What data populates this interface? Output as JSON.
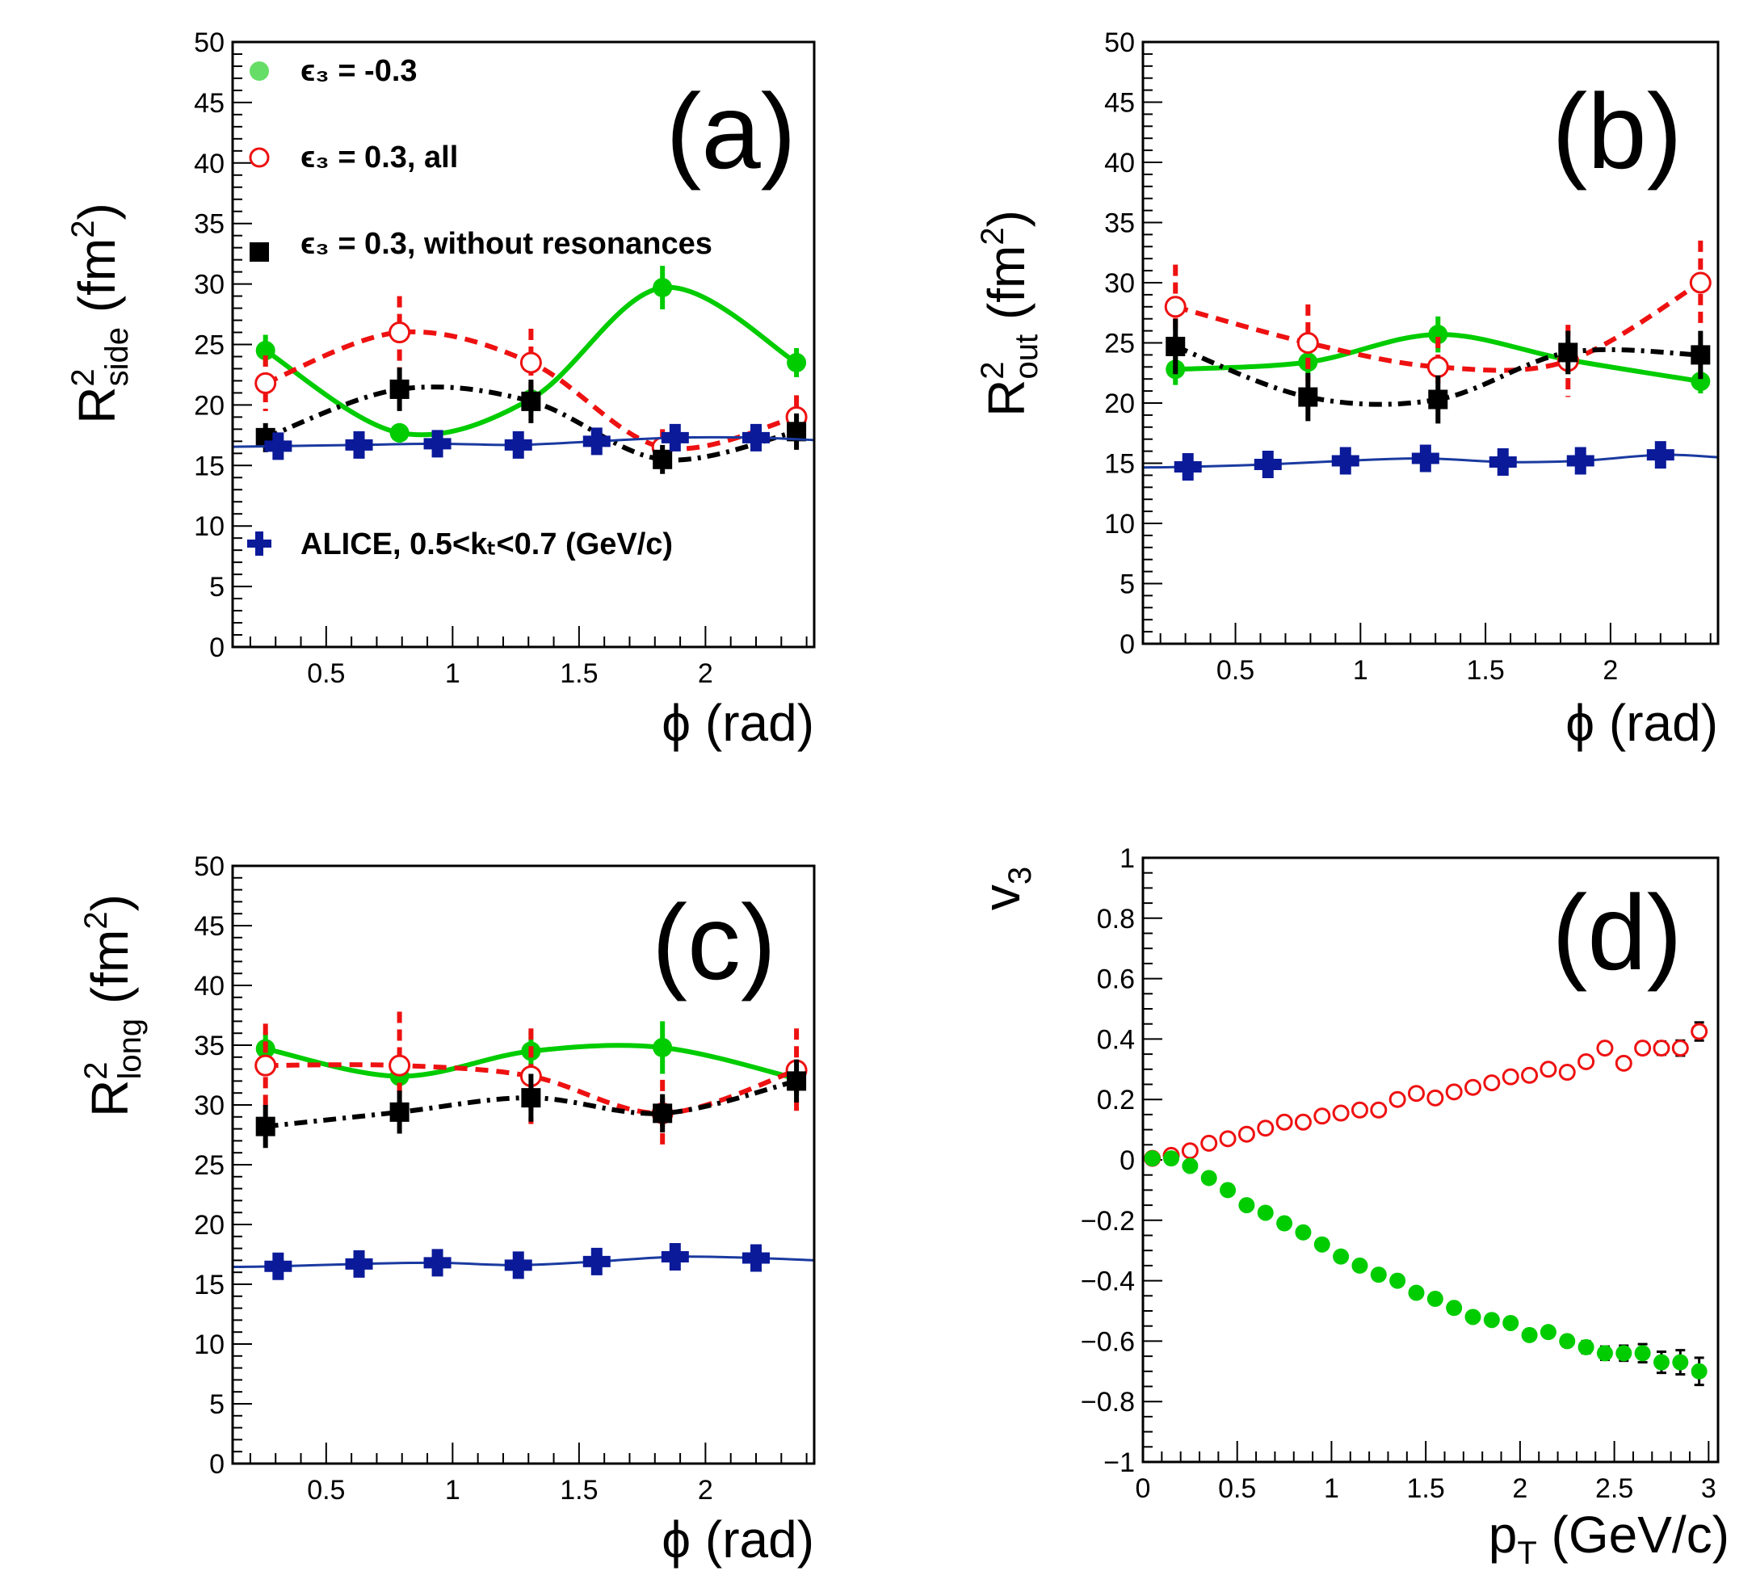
{
  "colors": {
    "green": "#00cc00",
    "green_legend": "#66dd66",
    "red": "#ee1111",
    "black": "#000000",
    "blue": "#0a1a99",
    "blue_line": "#1a3aa0"
  },
  "legend": {
    "green": "ϵ₃ = -0.3",
    "red": "ϵ₃ = 0.3, all",
    "black": "ϵ₃ = 0.3, without resonances",
    "blue": "ALICE, 0.5<kₜ<0.7 (GeV/c)"
  },
  "chart_data": [
    {
      "panel": "(a)",
      "type": "line",
      "ylabel": "R²side (fm²)",
      "xlabel": "ϕ (rad)",
      "xlim": [
        0.13,
        2.43
      ],
      "ylim": [
        0,
        50
      ],
      "xticks": [
        "0.5",
        "1",
        "1.5",
        "2"
      ],
      "yticks": [
        "0",
        "5",
        "10",
        "15",
        "20",
        "25",
        "30",
        "35",
        "40",
        "45",
        "50"
      ],
      "series": [
        {
          "name": "ϵ₃ = -0.3",
          "x": [
            0.26,
            0.79,
            1.31,
            1.83,
            2.36
          ],
          "y": [
            24.5,
            17.7,
            20.5,
            29.7,
            23.5
          ],
          "err": [
            1.3,
            0.8,
            1.2,
            1.8,
            1.2
          ]
        },
        {
          "name": "ϵ₃ = 0.3, all",
          "x": [
            0.26,
            0.79,
            1.31,
            1.83,
            2.36
          ],
          "y": [
            21.8,
            26.0,
            23.5,
            16.5,
            19.0
          ],
          "err": [
            2.3,
            3.0,
            2.8,
            1.5,
            1.8
          ]
        },
        {
          "name": "ϵ₃ = 0.3, without resonances",
          "x": [
            0.26,
            0.79,
            1.31,
            1.83,
            2.36
          ],
          "y": [
            17.3,
            21.3,
            20.3,
            15.5,
            17.8
          ],
          "err": [
            1.2,
            1.8,
            1.8,
            1.2,
            1.5
          ]
        },
        {
          "name": "ALICE, 0.5<kₜ<0.7 (GeV/c)",
          "x": [
            0.31,
            0.63,
            0.94,
            1.26,
            1.57,
            1.88,
            2.2
          ],
          "y": [
            16.6,
            16.7,
            16.8,
            16.7,
            17.0,
            17.3,
            17.3
          ],
          "err": [
            0.6,
            0.6,
            0.6,
            0.6,
            0.6,
            0.7,
            0.7
          ]
        }
      ]
    },
    {
      "panel": "(b)",
      "type": "line",
      "ylabel": "R²out (fm²)",
      "xlabel": "ϕ (rad)",
      "xlim": [
        0.13,
        2.43
      ],
      "ylim": [
        0,
        50
      ],
      "xticks": [
        "0.5",
        "1",
        "1.5",
        "2"
      ],
      "yticks": [
        "0",
        "5",
        "10",
        "15",
        "20",
        "25",
        "30",
        "35",
        "40",
        "45",
        "50"
      ],
      "series": [
        {
          "name": "ϵ₃ = -0.3",
          "x": [
            0.26,
            0.79,
            1.31,
            1.83,
            2.36
          ],
          "y": [
            22.8,
            23.4,
            25.7,
            23.6,
            21.8
          ],
          "err": [
            1.3,
            1.1,
            1.5,
            1.2,
            1.0
          ]
        },
        {
          "name": "ϵ₃ = 0.3, all",
          "x": [
            0.26,
            0.79,
            1.31,
            1.83,
            2.36
          ],
          "y": [
            28.0,
            25.0,
            23.0,
            23.5,
            30.0
          ],
          "err": [
            3.5,
            3.2,
            2.5,
            3.0,
            3.5
          ]
        },
        {
          "name": "ϵ₃ = 0.3, without resonances",
          "x": [
            0.26,
            0.79,
            1.31,
            1.83,
            2.36
          ],
          "y": [
            24.7,
            20.5,
            20.3,
            24.2,
            24.0
          ],
          "err": [
            2.3,
            2.0,
            2.0,
            1.8,
            2.0
          ]
        },
        {
          "name": "ALICE, 0.5<kₜ<0.7 (GeV/c)",
          "x": [
            0.31,
            0.63,
            0.94,
            1.26,
            1.57,
            1.88,
            2.2
          ],
          "y": [
            14.7,
            14.9,
            15.2,
            15.4,
            15.1,
            15.2,
            15.7
          ],
          "err": [
            0.6,
            0.6,
            0.6,
            0.6,
            0.6,
            0.6,
            0.6
          ]
        }
      ]
    },
    {
      "panel": "(c)",
      "type": "line",
      "ylabel": "R²long (fm²)",
      "xlabel": "ϕ (rad)",
      "xlim": [
        0.13,
        2.43
      ],
      "ylim": [
        0,
        50
      ],
      "xticks": [
        "0.5",
        "1",
        "1.5",
        "2"
      ],
      "yticks": [
        "0",
        "5",
        "10",
        "15",
        "20",
        "25",
        "30",
        "35",
        "40",
        "45",
        "50"
      ],
      "series": [
        {
          "name": "ϵ₃ = -0.3",
          "x": [
            0.26,
            0.79,
            1.31,
            1.83,
            2.36
          ],
          "y": [
            34.7,
            32.4,
            34.5,
            34.8,
            32.2
          ],
          "err": [
            1.4,
            1.3,
            1.7,
            2.2,
            1.4
          ]
        },
        {
          "name": "ϵ₃ = 0.3, all",
          "x": [
            0.26,
            0.79,
            1.31,
            1.83,
            2.36
          ],
          "y": [
            33.3,
            33.3,
            32.4,
            29.3,
            32.9
          ],
          "err": [
            3.5,
            4.5,
            4.0,
            2.8,
            3.5
          ]
        },
        {
          "name": "ϵ₃ = 0.3, without resonances",
          "x": [
            0.26,
            0.79,
            1.31,
            1.83,
            2.36
          ],
          "y": [
            28.2,
            29.4,
            30.6,
            29.3,
            32.0
          ],
          "err": [
            1.8,
            1.8,
            2.0,
            1.6,
            1.8
          ]
        },
        {
          "name": "ALICE, 0.5<kₜ<0.7 (GeV/c)",
          "x": [
            0.31,
            0.63,
            0.94,
            1.26,
            1.57,
            1.88,
            2.2
          ],
          "y": [
            16.5,
            16.7,
            16.8,
            16.6,
            16.9,
            17.3,
            17.2
          ],
          "err": [
            0.6,
            0.6,
            0.6,
            0.6,
            0.6,
            0.6,
            0.6
          ]
        }
      ]
    },
    {
      "panel": "(d)",
      "type": "scatter",
      "ylabel": "v₃",
      "xlabel": "pₜ (GeV/c)",
      "xlim": [
        0,
        3.05
      ],
      "ylim": [
        -1,
        1
      ],
      "xticks": [
        "0",
        "0.5",
        "1",
        "1.5",
        "2",
        "2.5",
        "3"
      ],
      "yticks": [
        "−1",
        "−0.8",
        "−0.6",
        "−0.4",
        "−0.2",
        "0",
        "0.2",
        "0.4",
        "0.6",
        "0.8",
        "1"
      ],
      "series": [
        {
          "name": "ϵ₃ = 0.3, all",
          "x": [
            0.05,
            0.15,
            0.25,
            0.35,
            0.45,
            0.55,
            0.65,
            0.75,
            0.85,
            0.95,
            1.05,
            1.15,
            1.25,
            1.35,
            1.45,
            1.55,
            1.65,
            1.75,
            1.85,
            1.95,
            2.05,
            2.15,
            2.25,
            2.35,
            2.45,
            2.55,
            2.65,
            2.75,
            2.85,
            2.95
          ],
          "y": [
            0.005,
            0.015,
            0.03,
            0.055,
            0.07,
            0.085,
            0.105,
            0.125,
            0.125,
            0.145,
            0.155,
            0.165,
            0.165,
            0.2,
            0.22,
            0.205,
            0.225,
            0.24,
            0.255,
            0.275,
            0.28,
            0.3,
            0.29,
            0.325,
            0.37,
            0.32,
            0.37,
            0.37,
            0.37,
            0.425
          ],
          "err": [
            0.005,
            0.005,
            0.005,
            0.005,
            0.005,
            0.005,
            0.005,
            0.005,
            0.005,
            0.005,
            0.005,
            0.005,
            0.005,
            0.008,
            0.008,
            0.008,
            0.008,
            0.01,
            0.01,
            0.01,
            0.01,
            0.012,
            0.012,
            0.015,
            0.015,
            0.018,
            0.02,
            0.022,
            0.025,
            0.03
          ]
        },
        {
          "name": "ϵ₃ = -0.3",
          "x": [
            0.05,
            0.15,
            0.25,
            0.35,
            0.45,
            0.55,
            0.65,
            0.75,
            0.85,
            0.95,
            1.05,
            1.15,
            1.25,
            1.35,
            1.45,
            1.55,
            1.65,
            1.75,
            1.85,
            1.95,
            2.05,
            2.15,
            2.25,
            2.35,
            2.45,
            2.55,
            2.65,
            2.75,
            2.85,
            2.95
          ],
          "y": [
            0.005,
            0.005,
            -0.02,
            -0.06,
            -0.1,
            -0.15,
            -0.175,
            -0.21,
            -0.24,
            -0.28,
            -0.32,
            -0.35,
            -0.38,
            -0.4,
            -0.44,
            -0.46,
            -0.49,
            -0.52,
            -0.53,
            -0.54,
            -0.58,
            -0.57,
            -0.6,
            -0.62,
            -0.64,
            -0.64,
            -0.64,
            -0.67,
            -0.67,
            -0.7
          ],
          "err": [
            0.005,
            0.005,
            0.005,
            0.005,
            0.005,
            0.005,
            0.005,
            0.005,
            0.005,
            0.005,
            0.005,
            0.005,
            0.005,
            0.008,
            0.008,
            0.008,
            0.008,
            0.01,
            0.01,
            0.012,
            0.012,
            0.015,
            0.018,
            0.02,
            0.022,
            0.025,
            0.03,
            0.035,
            0.04,
            0.045
          ]
        }
      ]
    }
  ]
}
